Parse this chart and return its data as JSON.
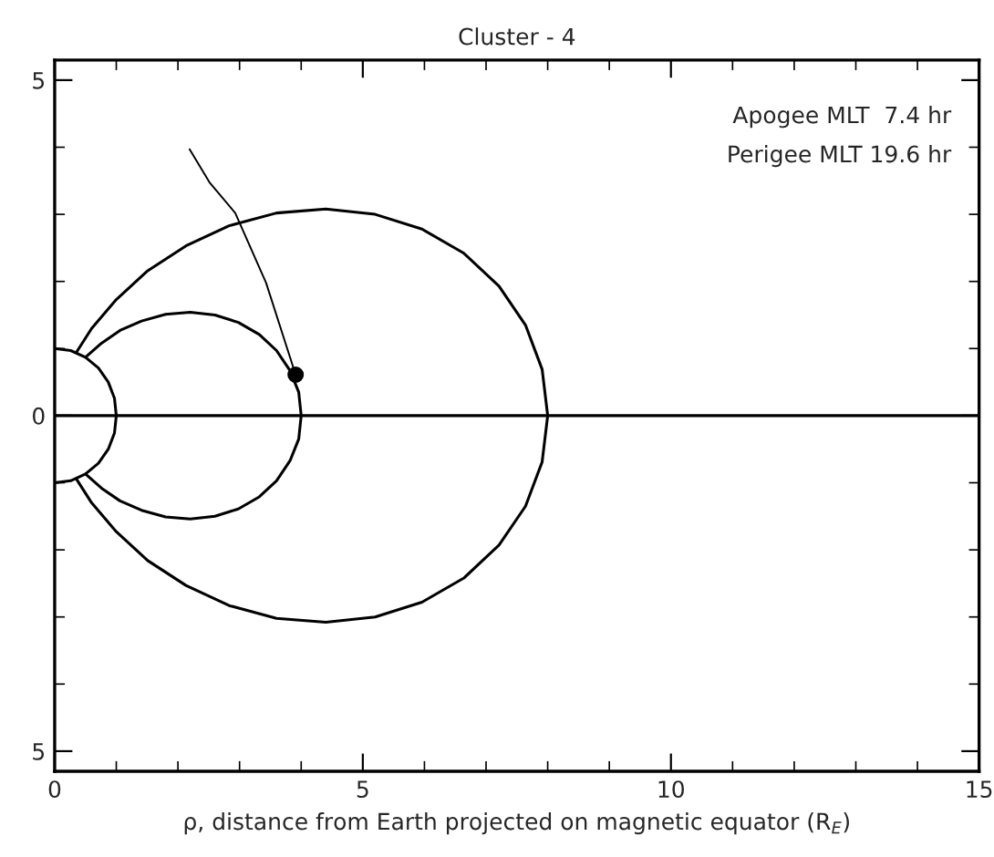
{
  "chart_data": {
    "type": "line",
    "title": "Cluster - 4",
    "xlabel": "ρ, distance from Earth projected on magnetic equator (R$_{E}$)",
    "xlim": [
      0,
      15
    ],
    "xticks": [
      0,
      5,
      10,
      15
    ],
    "ylim": [
      -5.3,
      5.3
    ],
    "yticks": [
      {
        "value": -5,
        "label": "5"
      },
      0,
      5
    ],
    "grid": false,
    "line_style": "solid",
    "ref_lines": [
      {
        "axis": "y",
        "value": 0,
        "color": "#000000"
      }
    ],
    "annotations": [
      "Apogee MLT  7.4 hr",
      "Perigee MLT 19.6 hr"
    ],
    "series": [
      {
        "color": "#000000",
        "x": [
          0,
          0.26,
          0.5,
          0.71,
          0.87,
          0.97,
          1,
          0.97,
          0.87,
          0.71,
          0.5,
          0.26,
          0
        ],
        "values": [
          1,
          0.97,
          0.87,
          0.71,
          0.5,
          0.26,
          0,
          -0.26,
          -0.5,
          -0.71,
          -0.87,
          -0.97,
          -1
        ]
      },
      {
        "color": "#000000",
        "x": [
          0.5,
          0.76,
          1.06,
          1.41,
          1.8,
          2.2,
          2.6,
          2.98,
          3.32,
          3.6,
          3.82,
          3.96,
          4,
          3.96,
          3.82,
          3.6,
          3.32,
          2.98,
          2.6,
          2.2,
          1.8,
          1.41,
          1.06,
          0.76,
          0.5
        ],
        "values": [
          0.87,
          1.08,
          1.27,
          1.41,
          1.51,
          1.54,
          1.5,
          1.39,
          1.21,
          0.97,
          0.67,
          0.35,
          0,
          -0.35,
          -0.67,
          -0.97,
          -1.21,
          -1.39,
          -1.5,
          -1.54,
          -1.51,
          -1.41,
          -1.27,
          -1.08,
          -0.87
        ]
      },
      {
        "color": "#000000",
        "x": [
          0.35,
          0.6,
          1,
          1.51,
          2.13,
          2.83,
          3.6,
          4.4,
          5.2,
          5.96,
          6.64,
          7.21,
          7.64,
          7.91,
          8,
          7.91,
          7.64,
          7.21,
          6.64,
          5.96,
          5.2,
          4.4,
          3.6,
          2.83,
          2.13,
          1.51,
          1,
          0.6,
          0.35
        ],
        "values": [
          0.94,
          1.3,
          1.73,
          2.16,
          2.53,
          2.83,
          3.02,
          3.08,
          3.0,
          2.78,
          2.42,
          1.93,
          1.35,
          0.69,
          0,
          -0.69,
          -1.35,
          -1.93,
          -2.42,
          -2.78,
          -3.0,
          -3.08,
          -3.02,
          -2.83,
          -2.53,
          -2.16,
          -1.73,
          -1.3,
          -0.94
        ]
      },
      {
        "color": "#000000",
        "x": [
          2.19,
          2.51,
          2.93,
          3.43,
          3.91
        ],
        "values": [
          3.97,
          3.48,
          3.02,
          1.98,
          0.61
        ]
      },
      {
        "type": "scatter",
        "color": "#000000",
        "marker": "circle",
        "x": [
          3.91
        ],
        "values": [
          0.61
        ]
      }
    ]
  }
}
